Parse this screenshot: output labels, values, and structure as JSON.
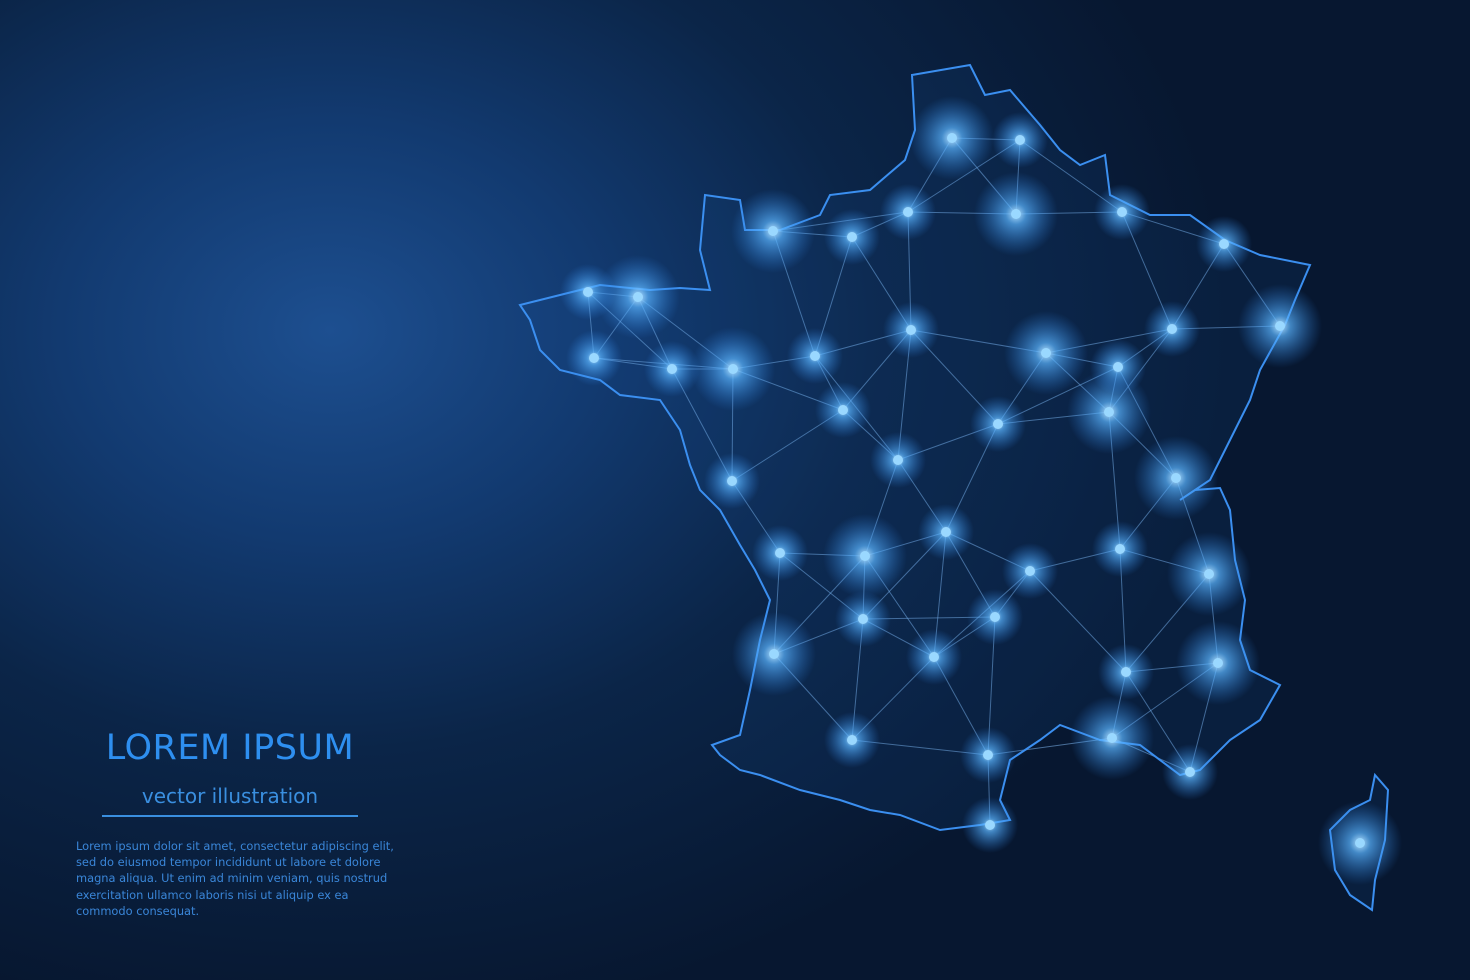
{
  "map": {
    "region": "France",
    "island": "Corsica",
    "style": "glowing polygonal network map"
  },
  "colors": {
    "background_light": "#1d4f90",
    "background_dark": "#071730",
    "outline": "#3b8ff0",
    "node_glow": "#6cc4ff",
    "text": "#2e8ff0"
  },
  "caption": {
    "title": "LOREM IPSUM",
    "subtitle": "vector illustration",
    "body": "Lorem ipsum dolor sit amet, consectetur adipiscing elit, sed do eiusmod tempor incididunt ut labore et dolore magna aliqua. Ut enim ad minim veniam, quis nostrud exercitation ullamco laboris nisi ut aliquip ex ea commodo consequat."
  }
}
